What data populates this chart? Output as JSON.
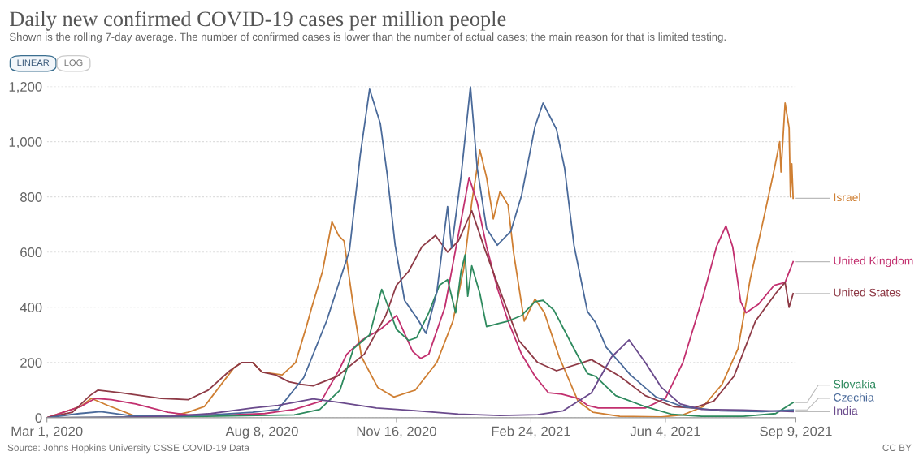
{
  "chart_data": {
    "type": "line",
    "title": "Daily new confirmed COVID-19 cases per million people",
    "subtitle": "Shown is the rolling 7-day average. The number of confirmed cases is lower than the number of actual cases; the main reason for that is limited testing.",
    "annotations": [
      "LINEAR",
      "LOG",
      "Source: Johns Hopkins University CSSE COVID-19 Data",
      "CC BY"
    ],
    "xlim": [
      "2020-03-01",
      "2021-09-09"
    ],
    "xticks": [
      {
        "value": "2020-03-01",
        "label": "Mar 1, 2020"
      },
      {
        "value": "2020-08-08",
        "label": "Aug 8, 2020"
      },
      {
        "value": "2020-11-16",
        "label": "Nov 16, 2020"
      },
      {
        "value": "2021-02-24",
        "label": "Feb 24, 2021"
      },
      {
        "value": "2021-06-04",
        "label": "Jun 4, 2021"
      },
      {
        "value": "2021-09-09",
        "label": "Sep 9, 2021"
      }
    ],
    "ylim": [
      0,
      1200
    ],
    "yticks": [
      0,
      200,
      400,
      600,
      800,
      {
        "value": 1000,
        "label": "1,000"
      },
      {
        "value": 1200,
        "label": "1,200"
      }
    ],
    "grid": "y",
    "marker": "none",
    "line_style": "solid",
    "series": [
      {
        "name": "Israel",
        "color": "#cf7f33",
        "x": [
          "2020-03-01",
          "2020-03-26",
          "2020-04-03",
          "2020-04-15",
          "2020-05-06",
          "2020-06-01",
          "2020-06-14",
          "2020-06-26",
          "2020-07-18",
          "2020-07-24",
          "2020-08-01",
          "2020-08-08",
          "2020-08-23",
          "2020-09-02",
          "2020-09-10",
          "2020-09-14",
          "2020-09-22",
          "2020-09-29",
          "2020-10-04",
          "2020-10-08",
          "2020-10-15",
          "2020-10-21",
          "2020-11-02",
          "2020-11-14",
          "2020-11-30",
          "2020-12-16",
          "2020-12-28",
          "2021-01-05",
          "2021-01-11",
          "2021-01-17",
          "2021-01-22",
          "2021-01-27",
          "2021-02-01",
          "2021-02-07",
          "2021-02-11",
          "2021-02-19",
          "2021-02-27",
          "2021-03-06",
          "2021-03-17",
          "2021-03-31",
          "2021-04-11",
          "2021-05-01",
          "2021-06-01",
          "2021-06-17",
          "2021-07-02",
          "2021-07-16",
          "2021-07-28",
          "2021-08-06",
          "2021-08-16",
          "2021-08-24",
          "2021-08-28",
          "2021-08-29",
          "2021-09-01",
          "2021-09-04",
          "2021-09-05",
          "2021-09-06",
          "2021-09-07"
        ],
        "values": [
          0,
          40,
          70,
          45,
          5,
          5,
          20,
          40,
          180,
          200,
          200,
          165,
          155,
          200,
          330,
          400,
          530,
          710,
          660,
          640,
          400,
          220,
          110,
          75,
          100,
          200,
          350,
          540,
          780,
          970,
          870,
          720,
          820,
          770,
          600,
          350,
          430,
          380,
          220,
          60,
          20,
          5,
          3,
          10,
          40,
          120,
          250,
          500,
          720,
          900,
          1000,
          890,
          1140,
          1050,
          800,
          920,
          795
        ]
      },
      {
        "name": "United Kingdom",
        "color": "#c2306f",
        "x": [
          "2020-03-01",
          "2020-03-26",
          "2020-04-06",
          "2020-04-18",
          "2020-05-06",
          "2020-05-30",
          "2020-06-14",
          "2020-07-15",
          "2020-08-10",
          "2020-09-01",
          "2020-09-08",
          "2020-09-21",
          "2020-10-04",
          "2020-10-10",
          "2020-10-21",
          "2020-11-04",
          "2020-11-16",
          "2020-11-28",
          "2020-12-04",
          "2020-12-10",
          "2020-12-22",
          "2020-12-30",
          "2021-01-09",
          "2021-01-15",
          "2021-01-22",
          "2021-01-30",
          "2021-02-07",
          "2021-02-17",
          "2021-02-27",
          "2021-03-09",
          "2021-03-19",
          "2021-03-31",
          "2021-04-07",
          "2021-04-15",
          "2021-05-20",
          "2021-06-04",
          "2021-06-17",
          "2021-07-02",
          "2021-07-12",
          "2021-07-19",
          "2021-07-24",
          "2021-07-30",
          "2021-08-03",
          "2021-08-12",
          "2021-08-24",
          "2021-09-01",
          "2021-09-07"
        ],
        "values": [
          0,
          40,
          70,
          65,
          50,
          20,
          10,
          10,
          15,
          30,
          40,
          60,
          170,
          230,
          280,
          320,
          370,
          240,
          215,
          230,
          400,
          610,
          870,
          780,
          620,
          470,
          350,
          230,
          150,
          90,
          85,
          70,
          45,
          35,
          35,
          70,
          200,
          440,
          620,
          695,
          620,
          420,
          380,
          410,
          480,
          490,
          565
        ]
      },
      {
        "name": "United States",
        "color": "#8e3a46",
        "x": [
          "2020-03-01",
          "2020-03-20",
          "2020-04-02",
          "2020-04-08",
          "2020-04-25",
          "2020-05-25",
          "2020-06-14",
          "2020-06-29",
          "2020-07-15",
          "2020-07-24",
          "2020-08-01",
          "2020-08-08",
          "2020-08-18",
          "2020-08-28",
          "2020-09-07",
          "2020-09-15",
          "2020-10-03",
          "2020-10-23",
          "2020-11-08",
          "2020-11-16",
          "2020-11-25",
          "2020-12-05",
          "2020-12-15",
          "2020-12-24",
          "2021-01-01",
          "2021-01-11",
          "2021-01-20",
          "2021-02-01",
          "2021-02-15",
          "2021-03-01",
          "2021-03-15",
          "2021-04-10",
          "2021-05-01",
          "2021-05-20",
          "2021-06-10",
          "2021-06-25",
          "2021-07-10",
          "2021-07-25",
          "2021-08-10",
          "2021-08-25",
          "2021-09-01",
          "2021-09-04",
          "2021-09-07"
        ],
        "values": [
          0,
          20,
          80,
          100,
          90,
          70,
          65,
          100,
          170,
          200,
          200,
          165,
          155,
          130,
          120,
          115,
          150,
          230,
          370,
          480,
          530,
          620,
          660,
          600,
          640,
          750,
          620,
          460,
          280,
          200,
          170,
          210,
          150,
          80,
          40,
          35,
          60,
          150,
          350,
          450,
          490,
          400,
          450
        ]
      },
      {
        "name": "Slovakia",
        "color": "#2e8a5e",
        "x": [
          "2020-03-01",
          "2020-06-01",
          "2020-09-01",
          "2020-09-20",
          "2020-10-05",
          "2020-10-15",
          "2020-10-27",
          "2020-11-05",
          "2020-11-10",
          "2020-11-16",
          "2020-11-25",
          "2020-12-01",
          "2020-12-10",
          "2020-12-18",
          "2020-12-24",
          "2020-12-30",
          "2021-01-03",
          "2021-01-06",
          "2021-01-08",
          "2021-01-11",
          "2021-01-17",
          "2021-01-22",
          "2021-01-30",
          "2021-02-07",
          "2021-02-17",
          "2021-02-27",
          "2021-03-05",
          "2021-03-13",
          "2021-03-28",
          "2021-04-07",
          "2021-04-13",
          "2021-04-28",
          "2021-05-20",
          "2021-06-09",
          "2021-07-01",
          "2021-08-01",
          "2021-08-25",
          "2021-09-07"
        ],
        "values": [
          0,
          3,
          10,
          30,
          100,
          250,
          300,
          465,
          400,
          320,
          280,
          290,
          380,
          480,
          500,
          380,
          530,
          590,
          440,
          550,
          450,
          330,
          340,
          350,
          370,
          420,
          425,
          390,
          250,
          160,
          150,
          80,
          40,
          12,
          5,
          5,
          15,
          55
        ]
      },
      {
        "name": "Czechia",
        "color": "#4a6a9a",
        "x": [
          "2020-03-01",
          "2020-03-25",
          "2020-04-10",
          "2020-05-01",
          "2020-06-01",
          "2020-07-01",
          "2020-08-01",
          "2020-08-20",
          "2020-09-08",
          "2020-09-25",
          "2020-10-12",
          "2020-10-20",
          "2020-10-27",
          "2020-11-04",
          "2020-11-09",
          "2020-11-15",
          "2020-11-22",
          "2020-12-02",
          "2020-12-08",
          "2020-12-16",
          "2020-12-24",
          "2020-12-27",
          "2021-01-03",
          "2021-01-10",
          "2021-01-15",
          "2021-01-22",
          "2021-01-30",
          "2021-02-09",
          "2021-02-17",
          "2021-02-27",
          "2021-03-05",
          "2021-03-15",
          "2021-03-21",
          "2021-03-28",
          "2021-04-07",
          "2021-04-13",
          "2021-04-21",
          "2021-05-09",
          "2021-05-28",
          "2021-06-17",
          "2021-07-15",
          "2021-08-15",
          "2021-09-07"
        ],
        "values": [
          0,
          15,
          22,
          8,
          5,
          10,
          20,
          30,
          145,
          350,
          605,
          950,
          1190,
          1065,
          885,
          625,
          425,
          355,
          305,
          455,
          765,
          615,
          875,
          1200,
          905,
          685,
          625,
          675,
          805,
          1055,
          1140,
          1045,
          905,
          625,
          385,
          345,
          255,
          155,
          75,
          40,
          25,
          22,
          28
        ]
      },
      {
        "name": "India",
        "color": "#6a4a8c",
        "x": [
          "2020-03-01",
          "2020-05-01",
          "2020-06-01",
          "2020-07-01",
          "2020-08-01",
          "2020-08-20",
          "2020-09-15",
          "2020-10-05",
          "2020-11-01",
          "2020-12-01",
          "2021-01-01",
          "2021-02-01",
          "2021-03-01",
          "2021-03-20",
          "2021-04-10",
          "2021-04-25",
          "2021-05-08",
          "2021-05-20",
          "2021-06-01",
          "2021-06-15",
          "2021-07-01",
          "2021-08-01",
          "2021-09-07"
        ],
        "values": [
          0,
          2,
          5,
          15,
          35,
          45,
          68,
          55,
          35,
          25,
          13,
          8,
          11,
          25,
          90,
          220,
          282,
          200,
          110,
          50,
          30,
          28,
          22
        ]
      }
    ]
  }
}
